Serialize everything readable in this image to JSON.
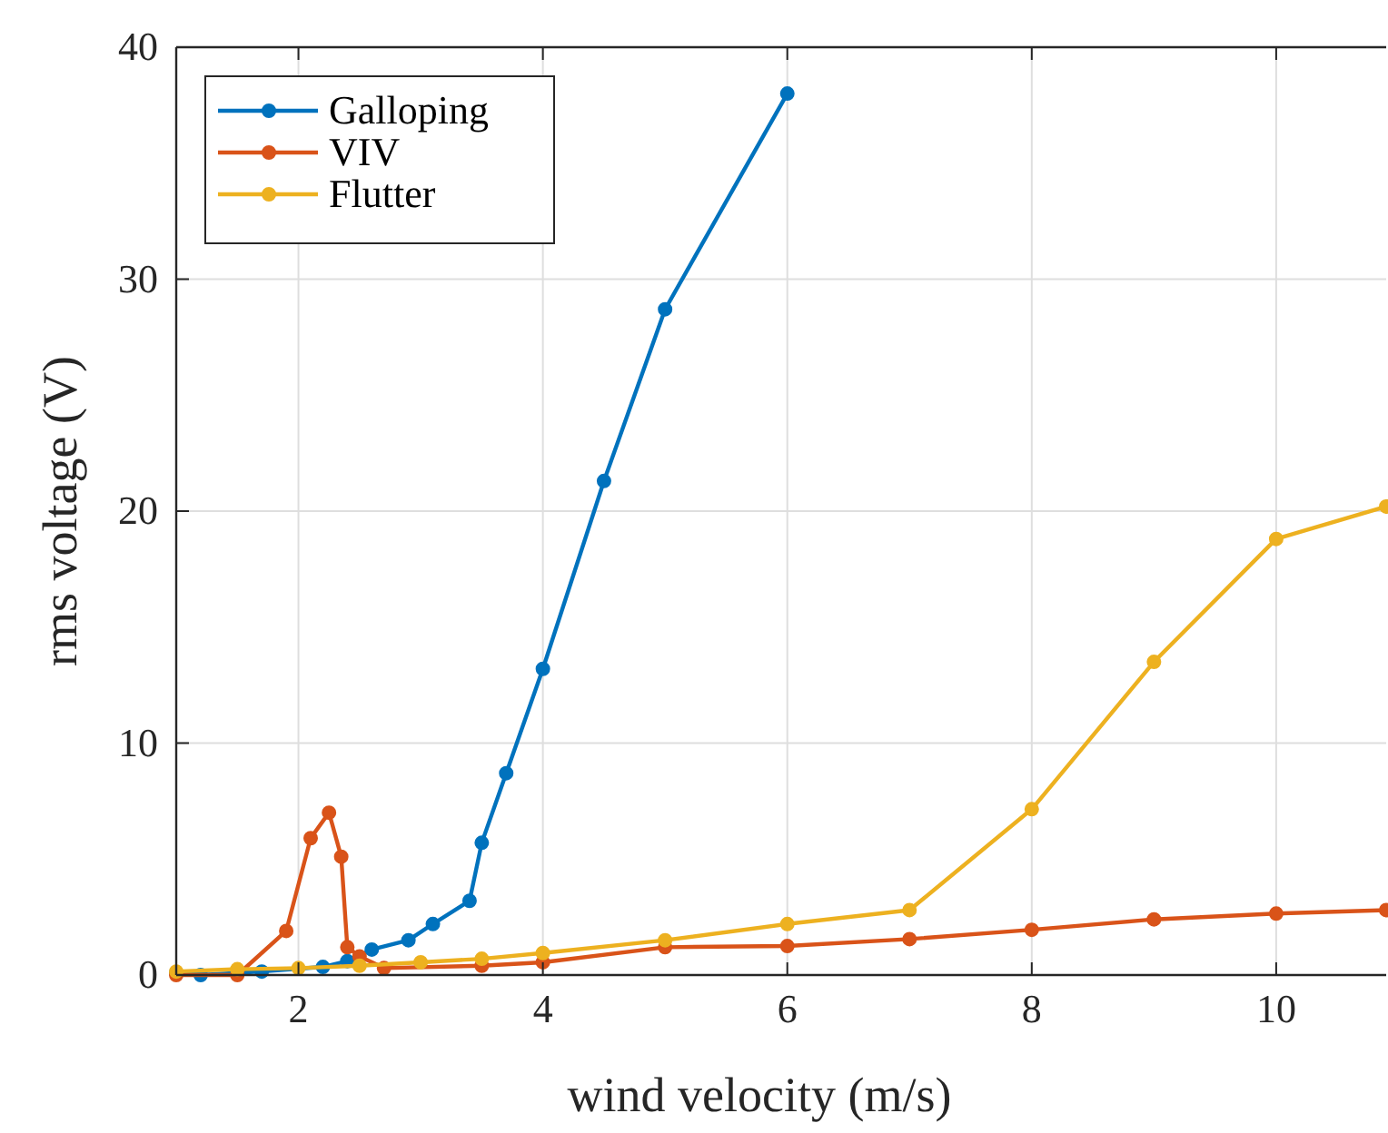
{
  "chart_data": {
    "type": "line",
    "xlabel": "wind velocity (m/s)",
    "ylabel": "rms voltage (V)",
    "xlim": [
      1,
      10.9
    ],
    "ylim": [
      0,
      40
    ],
    "xticks": [
      2,
      4,
      6,
      8,
      10
    ],
    "yticks": [
      0,
      10,
      20,
      30,
      40
    ],
    "grid": true,
    "legend": "top left",
    "marker": "circle",
    "line_style": "solid",
    "series": [
      {
        "name": "Galloping",
        "color": "#0072bd",
        "x": [
          1,
          1.2,
          1.7,
          2.2,
          2.4,
          2.6,
          2.9,
          3.1,
          3.4,
          3.5,
          3.7,
          4,
          4.5,
          5,
          6
        ],
        "values": [
          0.1,
          0,
          0.15,
          0.35,
          0.6,
          1.1,
          1.5,
          2.2,
          3.2,
          5.7,
          8.7,
          13.2,
          21.3,
          28.7,
          38
        ]
      },
      {
        "name": "VIV",
        "color": "#d95319",
        "x": [
          1,
          1.5,
          1.9,
          2.1,
          2.25,
          2.35,
          2.4,
          2.5,
          2.7,
          3.5,
          4,
          5,
          6,
          7,
          8,
          9,
          10,
          10.9
        ],
        "values": [
          0,
          0,
          1.9,
          5.9,
          7,
          5.1,
          1.2,
          0.8,
          0.3,
          0.4,
          0.55,
          1.2,
          1.25,
          1.55,
          1.95,
          2.4,
          2.65,
          2.8
        ]
      },
      {
        "name": "Flutter",
        "color": "#edb120",
        "x": [
          1,
          1.5,
          2,
          2.5,
          3,
          3.5,
          4,
          5,
          6,
          7,
          8,
          9,
          10,
          10.9
        ],
        "values": [
          0.15,
          0.25,
          0.3,
          0.4,
          0.55,
          0.7,
          0.95,
          1.5,
          2.2,
          2.8,
          7.15,
          13.5,
          18.8,
          20.2
        ]
      }
    ]
  }
}
